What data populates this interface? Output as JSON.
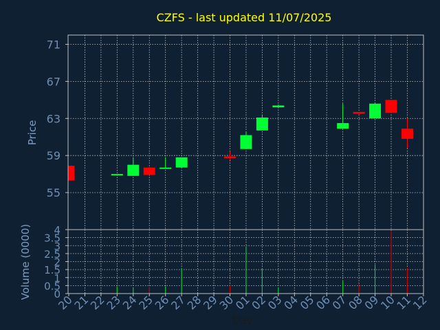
{
  "chart_data": {
    "type": "candlestick",
    "title": "CZFS - last updated 11/07/2025",
    "xlabel": "Day",
    "x_ticks": [
      "20",
      "21",
      "22",
      "23",
      "24",
      "25",
      "26",
      "27",
      "28",
      "29",
      "30",
      "01",
      "02",
      "03",
      "04",
      "05",
      "06",
      "07",
      "08",
      "09",
      "10",
      "11",
      "12"
    ],
    "price_panel": {
      "ylabel": "Price",
      "ylim": [
        51,
        72
      ],
      "y_ticks": [
        55,
        59,
        63,
        67,
        71
      ],
      "candles": [
        {
          "day": "20",
          "open": 57.9,
          "high": 57.9,
          "low": 56.3,
          "close": 56.3
        },
        {
          "day": "23",
          "open": 56.9,
          "high": 56.9,
          "low": 56.9,
          "close": 57.0
        },
        {
          "day": "24",
          "open": 56.8,
          "high": 58.8,
          "low": 56.8,
          "close": 58.0
        },
        {
          "day": "25",
          "open": 57.7,
          "high": 57.8,
          "low": 56.9,
          "close": 56.9
        },
        {
          "day": "26",
          "open": 57.6,
          "high": 58.8,
          "low": 57.6,
          "close": 57.7
        },
        {
          "day": "27",
          "open": 57.7,
          "high": 58.8,
          "low": 57.7,
          "close": 58.8
        },
        {
          "day": "30",
          "open": 58.9,
          "high": 59.4,
          "low": 58.5,
          "close": 58.7
        },
        {
          "day": "01",
          "open": 59.7,
          "high": 61.6,
          "low": 59.7,
          "close": 61.2
        },
        {
          "day": "02",
          "open": 61.7,
          "high": 63.4,
          "low": 61.7,
          "close": 63.1
        },
        {
          "day": "03",
          "open": 64.2,
          "high": 64.5,
          "low": 64.2,
          "close": 64.4
        },
        {
          "day": "07",
          "open": 61.9,
          "high": 64.6,
          "low": 61.9,
          "close": 62.5
        },
        {
          "day": "08",
          "open": 63.7,
          "high": 63.7,
          "low": 63.4,
          "close": 63.5
        },
        {
          "day": "09",
          "open": 63.0,
          "high": 64.7,
          "low": 63.0,
          "close": 64.6
        },
        {
          "day": "10",
          "open": 65.0,
          "high": 65.0,
          "low": 63.6,
          "close": 63.6
        },
        {
          "day": "11",
          "open": 61.9,
          "high": 63.0,
          "low": 59.8,
          "close": 60.8
        }
      ]
    },
    "volume_panel": {
      "ylabel": "Volume (0000)",
      "ylim": [
        0,
        4
      ],
      "y_ticks": [
        0,
        0.5,
        1,
        1.5,
        2,
        2.5,
        3,
        3.5,
        4
      ],
      "y_tick_labels": [
        "0",
        "0.5",
        "1",
        "1.5",
        "2",
        "2.5",
        "3",
        "3.5",
        "4"
      ],
      "bars": [
        {
          "day": "23",
          "value": 0.45,
          "direction": "up"
        },
        {
          "day": "24",
          "value": 0.35,
          "direction": "up"
        },
        {
          "day": "25",
          "value": 0.4,
          "direction": "down"
        },
        {
          "day": "26",
          "value": 0.45,
          "direction": "up"
        },
        {
          "day": "27",
          "value": 1.6,
          "direction": "up"
        },
        {
          "day": "30",
          "value": 0.5,
          "direction": "down"
        },
        {
          "day": "01",
          "value": 2.95,
          "direction": "up"
        },
        {
          "day": "02",
          "value": 1.6,
          "direction": "up"
        },
        {
          "day": "03",
          "value": 0.4,
          "direction": "up"
        },
        {
          "day": "07",
          "value": 0.8,
          "direction": "up"
        },
        {
          "day": "08",
          "value": 0.6,
          "direction": "down"
        },
        {
          "day": "09",
          "value": 1.8,
          "direction": "up"
        },
        {
          "day": "10",
          "value": 3.9,
          "direction": "down"
        },
        {
          "day": "11",
          "value": 1.6,
          "direction": "down"
        }
      ]
    },
    "grid": true,
    "colors": {
      "background": "#0f2033",
      "panel": "#0f2033",
      "border": "#c0c0c0",
      "grid": "#c8c8c8",
      "title": "#ffff00",
      "axis_text": "#6d8fb5",
      "label_text": "#7a9cc2",
      "up": "#00ff33",
      "down": "#ff0000",
      "vol_up": "#00cc33",
      "vol_down": "#cc0000"
    }
  }
}
